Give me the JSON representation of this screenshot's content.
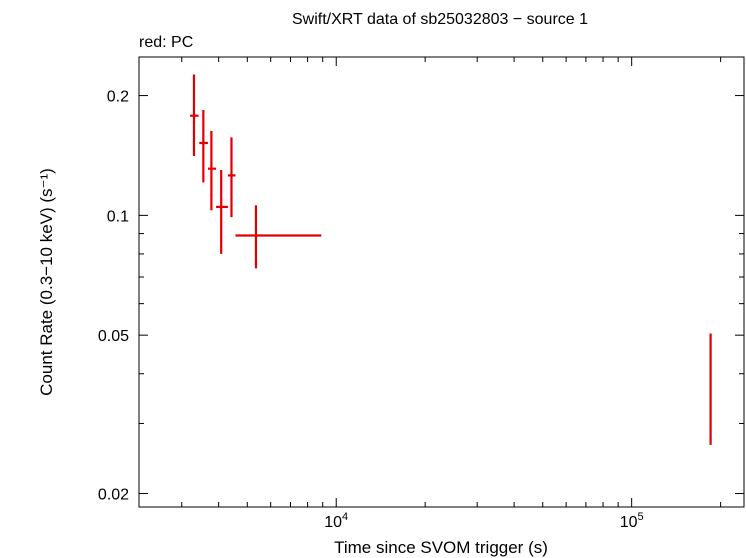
{
  "chart_data": {
    "type": "scatter",
    "title": "Swift/XRT data of sb25032803 − source 1",
    "subtitle": "red: PC",
    "xlabel": "Time since SVOM trigger (s)",
    "ylabel": "Count Rate (0.3−10 keV) (s⁻¹)",
    "xscale": "log",
    "yscale": "log",
    "xlim": [
      2150,
      240000
    ],
    "ylim": [
      0.0185,
      0.25
    ],
    "x_ticks": [
      {
        "value": 10000,
        "base": "10",
        "exp": "4"
      },
      {
        "value": 100000,
        "base": "10",
        "exp": "5"
      }
    ],
    "y_ticks": [
      {
        "value": 0.02,
        "label": "0.02"
      },
      {
        "value": 0.05,
        "label": "0.05"
      },
      {
        "value": 0.1,
        "label": "0.1"
      },
      {
        "value": 0.2,
        "label": "0.2"
      }
    ],
    "grid": false,
    "series": [
      {
        "name": "PC",
        "color": "#e00000",
        "points": [
          {
            "x": 3300,
            "x_lo": 3200,
            "x_hi": 3420,
            "y": 0.178,
            "y_lo": 0.141,
            "y_hi": 0.226
          },
          {
            "x": 3550,
            "x_lo": 3440,
            "x_hi": 3680,
            "y": 0.152,
            "y_lo": 0.121,
            "y_hi": 0.184
          },
          {
            "x": 3780,
            "x_lo": 3680,
            "x_hi": 3920,
            "y": 0.131,
            "y_lo": 0.103,
            "y_hi": 0.163
          },
          {
            "x": 4080,
            "x_lo": 3920,
            "x_hi": 4300,
            "y": 0.105,
            "y_lo": 0.08,
            "y_hi": 0.13
          },
          {
            "x": 4420,
            "x_lo": 4300,
            "x_hi": 4560,
            "y": 0.126,
            "y_lo": 0.099,
            "y_hi": 0.157
          },
          {
            "x": 5350,
            "x_lo": 4560,
            "x_hi": 8900,
            "y": 0.089,
            "y_lo": 0.0736,
            "y_hi": 0.106
          },
          {
            "x": 185000,
            "x_lo": 185000,
            "x_hi": 185000,
            "y": 0.036,
            "y_lo": 0.0265,
            "y_hi": 0.0505
          }
        ]
      }
    ]
  }
}
